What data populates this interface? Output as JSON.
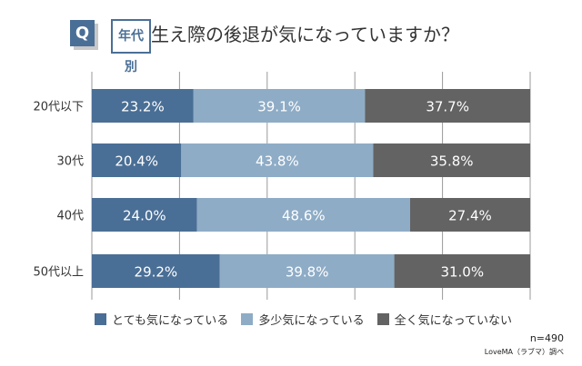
{
  "header": {
    "q_label": "Q",
    "tag": "年代別",
    "title": "生え際の後退が気になっていますか？"
  },
  "chart_data": {
    "type": "bar",
    "orientation": "horizontal",
    "stacked": true,
    "categories": [
      "20代以下",
      "30代",
      "40代",
      "50代以上"
    ],
    "series": [
      {
        "name": "とても気になっている",
        "color": "#4a6f96",
        "values": [
          23.2,
          20.4,
          24.0,
          29.2
        ]
      },
      {
        "name": "多少気になっている",
        "color": "#8eacc6",
        "values": [
          39.1,
          43.8,
          48.6,
          39.8
        ]
      },
      {
        "name": "全く気になっていない",
        "color": "#636363",
        "values": [
          37.7,
          35.8,
          27.4,
          31.0
        ]
      }
    ],
    "xlim": [
      0,
      100
    ],
    "grid": true,
    "legend": "bottom",
    "data_labels": [
      [
        "23.2%",
        "39.1%",
        "37.7%"
      ],
      [
        "20.4%",
        "43.8%",
        "35.8%"
      ],
      [
        "24.0%",
        "48.6%",
        "27.4%"
      ],
      [
        "29.2%",
        "39.8%",
        "31.0%"
      ]
    ]
  },
  "footer": {
    "n": "n=490",
    "source": "LoveMA（ラブマ）調べ"
  }
}
